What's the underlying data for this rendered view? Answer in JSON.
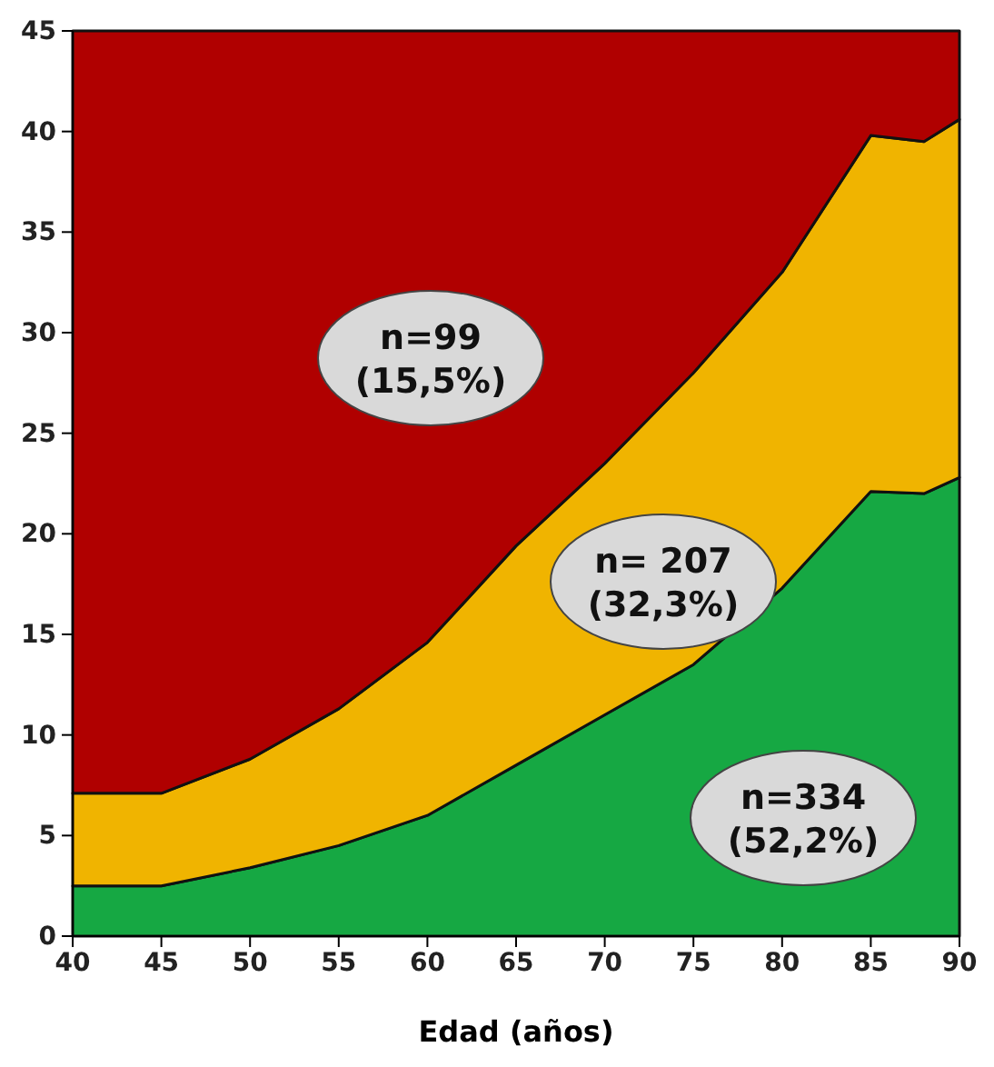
{
  "chart_data": {
    "type": "area",
    "stacked": true,
    "xlabel": "Edad (años)",
    "x": [
      40,
      45,
      50,
      55,
      60,
      65,
      70,
      75,
      80,
      85,
      88,
      90
    ],
    "xlim": [
      40,
      90
    ],
    "xticks": [
      40,
      45,
      50,
      55,
      60,
      65,
      70,
      75,
      80,
      85,
      90
    ],
    "ylim": [
      0,
      45
    ],
    "yticks": [
      0,
      5,
      10,
      15,
      20,
      25,
      30,
      35,
      40,
      45
    ],
    "series": [
      {
        "color": "#16a843",
        "values": [
          2.5,
          2.5,
          3.4,
          4.5,
          6,
          8.5,
          11,
          13.5,
          17.3,
          22.1,
          22,
          22.8
        ]
      },
      {
        "color": "#f0b400",
        "values": [
          4.6,
          4.6,
          5.4,
          6.8,
          8.6,
          10.9,
          12.5,
          14.5,
          15.7,
          17.7,
          17.5,
          17.8
        ]
      },
      {
        "color": "#b00000",
        "values": [
          37.9,
          37.9,
          36.2,
          33.7,
          30.4,
          25.6,
          21.5,
          17,
          12,
          5.2,
          5.5,
          4.4
        ]
      }
    ],
    "annotations": [
      "n=99\n(15,5%)",
      "n= 207\n(32,3%)",
      "n=334\n(52,2%)"
    ]
  }
}
